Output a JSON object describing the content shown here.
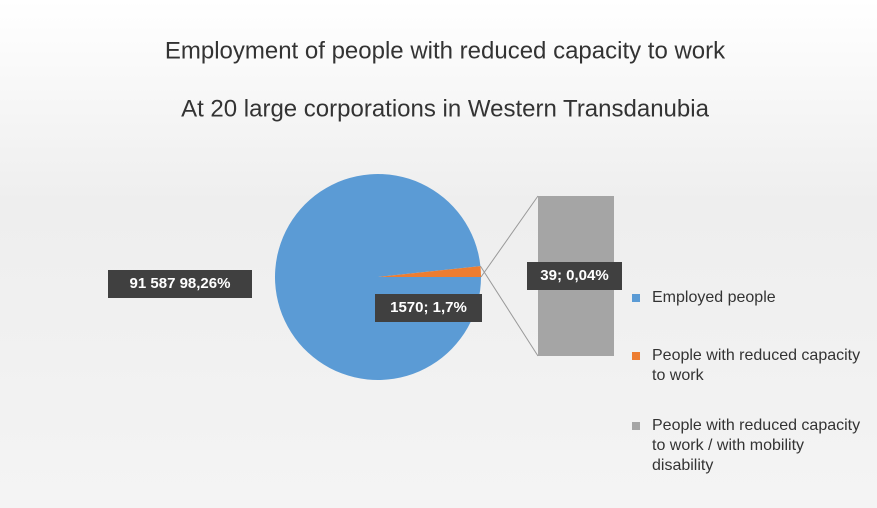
{
  "chart_data": {
    "type": "pie-of-bar",
    "title": "Employment of people with reduced capacity to work",
    "subtitle": "At 20 large corporations in Western Transdanubia",
    "categories": [
      "Employed people",
      "People with reduced capacity to work",
      "People with reduced capacity to work / with mobility disability"
    ],
    "values": [
      91587,
      1570,
      39
    ],
    "value_labels": [
      "91 587 98,26%",
      "1570; 1,7%",
      "39; 0,04%"
    ],
    "colors": [
      "#5b9bd5",
      "#ed7d31",
      "#a5a5a5"
    ],
    "legend": "right"
  }
}
